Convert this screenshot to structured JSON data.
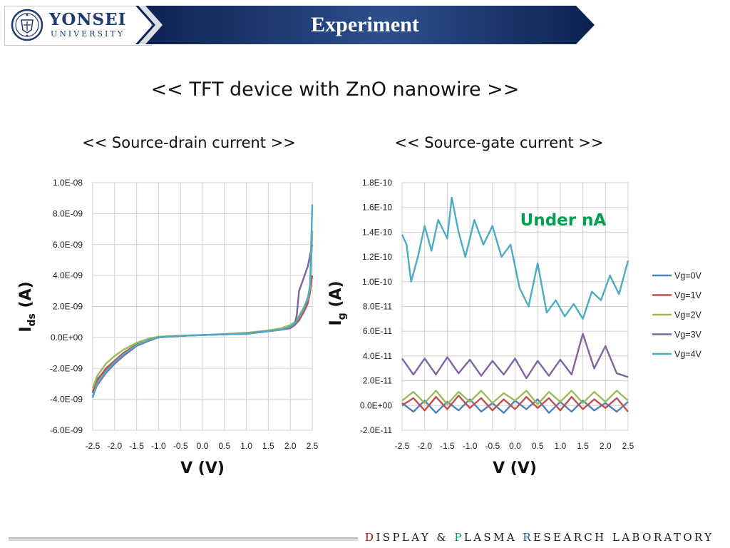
{
  "header": {
    "university_name": "YONSEI",
    "university_sub": "UNIVERSITY",
    "section_title": "Experiment",
    "seal_icon": "yonsei-seal-icon"
  },
  "slide": {
    "title": "<< TFT device with ZnO nanowire >>"
  },
  "footer": {
    "d": "D",
    "isplay": "ISPLAY",
    "amp": "&",
    "p": "P",
    "lasma": "LASMA",
    "r": "R",
    "esearch": "ESEARCH",
    "laboratory": "LABORATORY"
  },
  "colors": {
    "banner_dark": "#0d2150",
    "banner_light": "#3c5f9c",
    "annotation": "#00a050",
    "grid": "#d0d0d0"
  },
  "chart_data": [
    {
      "type": "line",
      "title": "<< Source-drain current >>",
      "xlabel": "V (V)",
      "ylabel_main": "I",
      "ylabel_sub": "ds",
      "ylabel_unit": "(A)",
      "xlim": [
        -2.5,
        2.5
      ],
      "ylim": [
        -6e-09,
        1e-08
      ],
      "x_ticks": [
        "-2.5",
        "-2.0",
        "-1.5",
        "-1.0",
        "-0.5",
        "0.0",
        "0.5",
        "1.0",
        "1.5",
        "2.0",
        "2.5"
      ],
      "y_ticks": [
        "1.0E-08",
        "8.0E-09",
        "6.0E-09",
        "4.0E-09",
        "2.0E-09",
        "0.0E+00",
        "-2.0E-09",
        "-4.0E-09",
        "-6.0E-09"
      ],
      "grid": true,
      "series": [
        {
          "name": "Vg=0V",
          "color": "#4f81bd",
          "x": [
            -2.5,
            -2.4,
            -2.2,
            -2.0,
            -1.8,
            -1.5,
            -1.2,
            -1.0,
            -0.5,
            0.0,
            0.5,
            1.0,
            1.5,
            1.8,
            2.0,
            2.1,
            2.2,
            2.3,
            2.4,
            2.45,
            2.5
          ],
          "y": [
            -3.6e-09,
            -2.7e-09,
            -2.1e-09,
            -1.6e-09,
            -1.1e-09,
            -5e-10,
            -1.5e-10,
            0,
            1e-10,
            1.5e-10,
            2e-10,
            2.3e-10,
            4e-10,
            5e-10,
            7e-10,
            9e-10,
            1.3e-09,
            1.8e-09,
            2.4e-09,
            3e-09,
            6.8e-09
          ]
        },
        {
          "name": "Vg=1V",
          "color": "#c0504d",
          "x": [
            -2.5,
            -2.4,
            -2.2,
            -2.0,
            -1.8,
            -1.5,
            -1.2,
            -1.0,
            -0.5,
            0.0,
            0.5,
            1.0,
            1.5,
            1.8,
            2.0,
            2.1,
            2.2,
            2.3,
            2.4,
            2.45,
            2.5
          ],
          "y": [
            -3.5e-09,
            -2.8e-09,
            -2e-09,
            -1.5e-09,
            -1e-09,
            -4.5e-10,
            -1e-10,
            0,
            1e-10,
            1.5e-10,
            2e-10,
            2.5e-10,
            4e-10,
            5e-10,
            6e-10,
            8e-10,
            1.1e-09,
            1.6e-09,
            2.2e-09,
            2.9e-09,
            4e-09
          ]
        },
        {
          "name": "Vg=2V",
          "color": "#9bbb59",
          "x": [
            -2.5,
            -2.4,
            -2.2,
            -2.0,
            -1.8,
            -1.5,
            -1.2,
            -1.0,
            -0.5,
            0.0,
            0.5,
            1.0,
            1.5,
            1.8,
            2.0,
            2.1,
            2.2,
            2.3,
            2.4,
            2.45,
            2.5
          ],
          "y": [
            -3.3e-09,
            -2.5e-09,
            -1.7e-09,
            -1.2e-09,
            -8e-10,
            -3.5e-10,
            -5e-11,
            5e-11,
            1.2e-10,
            1.6e-10,
            2.2e-10,
            3e-10,
            4.5e-10,
            6e-10,
            8e-10,
            1e-09,
            1.4e-09,
            1.9e-09,
            2.5e-09,
            3.2e-09,
            6.9e-09
          ]
        },
        {
          "name": "Vg=3V",
          "color": "#8064a2",
          "x": [
            -2.5,
            -2.4,
            -2.2,
            -2.0,
            -1.8,
            -1.5,
            -1.2,
            -1.0,
            -0.5,
            0.0,
            0.5,
            1.0,
            1.5,
            1.8,
            2.0,
            2.1,
            2.15,
            2.2,
            2.3,
            2.4,
            2.5
          ],
          "y": [
            -3.8e-09,
            -3.1e-09,
            -2.3e-09,
            -1.7e-09,
            -1.2e-09,
            -5.5e-10,
            -2e-10,
            0,
            1e-10,
            1.5e-10,
            2e-10,
            2.5e-10,
            4e-10,
            5e-10,
            6e-10,
            8e-10,
            1.5e-09,
            3e-09,
            3.8e-09,
            4.6e-09,
            6e-09
          ]
        },
        {
          "name": "Vg=4V",
          "color": "#4bacc6",
          "x": [
            -2.5,
            -2.4,
            -2.2,
            -2.0,
            -1.8,
            -1.5,
            -1.2,
            -1.0,
            -0.5,
            0.0,
            0.5,
            1.0,
            1.5,
            1.8,
            2.0,
            2.1,
            2.2,
            2.3,
            2.4,
            2.45,
            2.5
          ],
          "y": [
            -3.9e-09,
            -3e-09,
            -2.2e-09,
            -1.6e-09,
            -1.1e-09,
            -5e-10,
            -1.5e-10,
            0,
            1e-10,
            1.5e-10,
            2e-10,
            2.3e-10,
            4e-10,
            5e-10,
            7e-10,
            9e-10,
            1.3e-09,
            1.8e-09,
            2.6e-09,
            3.3e-09,
            8.6e-09
          ]
        }
      ]
    },
    {
      "type": "line",
      "title": "<< Source-gate current >>",
      "xlabel": "V (V)",
      "ylabel_main": "I",
      "ylabel_sub": "g",
      "ylabel_unit": "(A)",
      "xlim": [
        -2.5,
        2.5
      ],
      "ylim": [
        -2e-11,
        1.8e-10
      ],
      "x_ticks": [
        "-2.5",
        "-2.0",
        "-1.5",
        "-1.0",
        "-0.5",
        "0.0",
        "0.5",
        "1.0",
        "1.5",
        "2.0",
        "2.5"
      ],
      "y_ticks": [
        "1.8E-10",
        "1.6E-10",
        "1.4E-10",
        "1.2E-10",
        "1.0E-10",
        "8.0E-11",
        "6.0E-11",
        "4.0E-11",
        "2.0E-11",
        "0.0E+00",
        "-2.0E-11"
      ],
      "annotation": "Under nA",
      "grid": true,
      "legend_position": "right",
      "series": [
        {
          "name": "Vg=0V",
          "color": "#4f81bd",
          "x": [
            -2.5,
            -2.25,
            -2.0,
            -1.75,
            -1.5,
            -1.25,
            -1.0,
            -0.75,
            -0.5,
            -0.25,
            0.0,
            0.25,
            0.5,
            0.75,
            1.0,
            1.25,
            1.5,
            1.75,
            2.0,
            2.25,
            2.5
          ],
          "y": [
            2e-12,
            -5e-12,
            4e-12,
            -6e-12,
            3e-12,
            -4e-12,
            5e-12,
            -5e-12,
            2e-12,
            -6e-12,
            4e-12,
            -3e-12,
            5e-12,
            -6e-12,
            3e-12,
            -5e-12,
            4e-12,
            -4e-12,
            2e-12,
            -5e-12,
            3e-12
          ]
        },
        {
          "name": "Vg=1V",
          "color": "#c0504d",
          "x": [
            -2.5,
            -2.25,
            -2.0,
            -1.75,
            -1.5,
            -1.25,
            -1.0,
            -0.75,
            -0.5,
            -0.25,
            0.0,
            0.25,
            0.5,
            0.75,
            1.0,
            1.25,
            1.5,
            1.75,
            2.0,
            2.25,
            2.5
          ],
          "y": [
            0,
            6e-12,
            -4e-12,
            7e-12,
            -3e-12,
            8e-12,
            -2e-12,
            6e-12,
            -4e-12,
            5e-12,
            -3e-12,
            7e-12,
            -2e-12,
            6e-12,
            -4e-12,
            7e-12,
            -3e-12,
            5e-12,
            -2e-12,
            6e-12,
            -5e-12
          ]
        },
        {
          "name": "Vg=2V",
          "color": "#9bbb59",
          "x": [
            -2.5,
            -2.25,
            -2.0,
            -1.75,
            -1.5,
            -1.25,
            -1.0,
            -0.75,
            -0.5,
            -0.25,
            0.0,
            0.25,
            0.5,
            0.75,
            1.0,
            1.25,
            1.5,
            1.75,
            2.0,
            2.25,
            2.5
          ],
          "y": [
            4e-12,
            1.1e-11,
            2e-12,
            1.2e-11,
            1e-12,
            1.1e-11,
            3e-12,
            1.2e-11,
            2e-12,
            1e-11,
            4e-12,
            1.2e-11,
            1e-12,
            1.1e-11,
            3e-12,
            1.2e-11,
            2e-12,
            1.1e-11,
            3e-12,
            1.2e-11,
            4e-12
          ]
        },
        {
          "name": "Vg=3V",
          "color": "#8064a2",
          "x": [
            -2.5,
            -2.25,
            -2.0,
            -1.75,
            -1.5,
            -1.25,
            -1.0,
            -0.75,
            -0.5,
            -0.25,
            0.0,
            0.25,
            0.5,
            0.75,
            1.0,
            1.25,
            1.5,
            1.75,
            2.0,
            2.25,
            2.5
          ],
          "y": [
            3.8e-11,
            2.5e-11,
            3.8e-11,
            2.5e-11,
            3.9e-11,
            2.6e-11,
            3.7e-11,
            2.4e-11,
            3.6e-11,
            2.5e-11,
            3.8e-11,
            2.2e-11,
            3.6e-11,
            2.4e-11,
            3.7e-11,
            2.5e-11,
            5.8e-11,
            3e-11,
            4.8e-11,
            2.6e-11,
            2.3e-11
          ]
        },
        {
          "name": "Vg=4V",
          "color": "#4bacc6",
          "x": [
            -2.5,
            -2.4,
            -2.3,
            -2.15,
            -2.0,
            -1.85,
            -1.7,
            -1.5,
            -1.4,
            -1.25,
            -1.1,
            -0.9,
            -0.7,
            -0.5,
            -0.3,
            -0.1,
            0.1,
            0.3,
            0.5,
            0.7,
            0.9,
            1.1,
            1.3,
            1.5,
            1.7,
            1.9,
            2.1,
            2.3,
            2.5
          ],
          "y": [
            1.38e-10,
            1.3e-10,
            1e-10,
            1.2e-10,
            1.45e-10,
            1.25e-10,
            1.5e-10,
            1.35e-10,
            1.68e-10,
            1.4e-10,
            1.2e-10,
            1.5e-10,
            1.3e-10,
            1.45e-10,
            1.2e-10,
            1.3e-10,
            9.5e-11,
            8e-11,
            1.15e-10,
            7.5e-11,
            8.5e-11,
            7.2e-11,
            8.2e-11,
            7e-11,
            9.2e-11,
            8.5e-11,
            1.05e-10,
            9e-11,
            1.17e-10
          ]
        }
      ]
    }
  ]
}
